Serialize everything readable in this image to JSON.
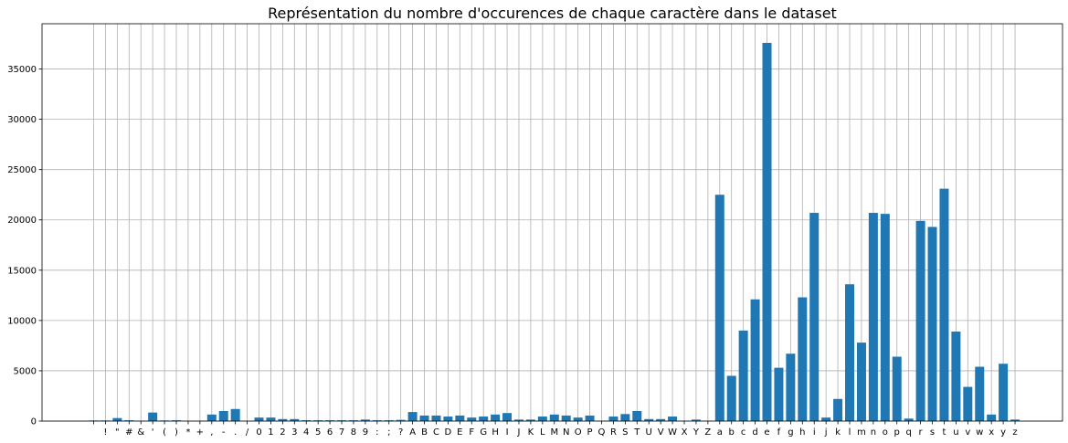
{
  "chart_data": {
    "type": "bar",
    "title": "Représentation du nombre d'occurences de chaque caractère dans le dataset",
    "xlabel": "",
    "ylabel": "",
    "ylim": [
      0,
      39500
    ],
    "yticks": [
      0,
      5000,
      10000,
      15000,
      20000,
      25000,
      30000,
      35000
    ],
    "grid": true,
    "bar_color": "#1f77b4",
    "categories": [
      " ",
      "!",
      "\"",
      "#",
      "&",
      "'",
      "(",
      ")",
      "*",
      "+",
      ",",
      "-",
      ".",
      "/",
      "0",
      "1",
      "2",
      "3",
      "4",
      "5",
      "6",
      "7",
      "8",
      "9",
      ":",
      ";",
      "?",
      "A",
      "B",
      "C",
      "D",
      "E",
      "F",
      "G",
      "H",
      "I",
      "J",
      "K",
      "L",
      "M",
      "N",
      "O",
      "P",
      "Q",
      "R",
      "S",
      "T",
      "U",
      "V",
      "W",
      "X",
      "Y",
      "Z",
      "a",
      "b",
      "c",
      "d",
      "e",
      "f",
      "g",
      "h",
      "i",
      "j",
      "k",
      "l",
      "m",
      "n",
      "o",
      "p",
      "q",
      "r",
      "s",
      "t",
      "u",
      "v",
      "w",
      "x",
      "y",
      "z"
    ],
    "values": [
      60,
      60,
      300,
      80,
      20,
      850,
      60,
      80,
      20,
      20,
      650,
      1000,
      1200,
      10,
      350,
      350,
      200,
      200,
      80,
      80,
      80,
      80,
      80,
      150,
      80,
      80,
      120,
      900,
      550,
      550,
      450,
      550,
      350,
      450,
      650,
      800,
      150,
      150,
      450,
      650,
      550,
      350,
      550,
      30,
      450,
      700,
      1000,
      200,
      200,
      450,
      30,
      150,
      30,
      22500,
      4500,
      9000,
      12100,
      37600,
      5300,
      6700,
      12300,
      20700,
      350,
      2200,
      13600,
      7800,
      20700,
      20600,
      6400,
      250,
      19900,
      19300,
      23100,
      8900,
      3400,
      5400,
      650,
      5700,
      150
    ]
  }
}
